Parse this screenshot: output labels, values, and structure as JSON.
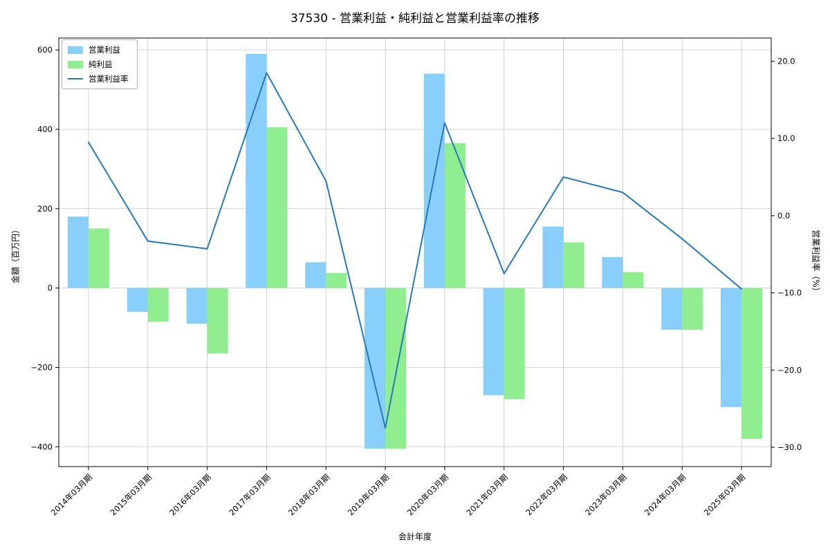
{
  "chart_data": {
    "type": "bar",
    "title": "37530 - 営業利益・純利益と営業利益率の推移",
    "xlabel": "会計年度",
    "ylabel_left": "金額（百万円）",
    "ylabel_right": "営業利益率（%）",
    "categories": [
      "2014年03月期",
      "2015年03月期",
      "2016年03月期",
      "2017年03月期",
      "2018年03月期",
      "2019年03月期",
      "2020年03月期",
      "2021年03月期",
      "2022年03月期",
      "2023年03月期",
      "2024年03月期",
      "2025年03月期"
    ],
    "series": [
      {
        "name": "営業利益",
        "type": "bar",
        "axis": "left",
        "color": "#87cefa",
        "values": [
          180,
          -60,
          -90,
          590,
          65,
          -405,
          540,
          -270,
          155,
          78,
          -105,
          -300
        ]
      },
      {
        "name": "純利益",
        "type": "bar",
        "axis": "left",
        "color": "#90ee90",
        "values": [
          150,
          -85,
          -165,
          405,
          38,
          -405,
          365,
          -280,
          115,
          40,
          -105,
          -380
        ]
      },
      {
        "name": "営業利益率",
        "type": "line",
        "axis": "right",
        "color": "#2878b5",
        "values": [
          9.5,
          -3.3,
          -4.3,
          18.5,
          4.5,
          -27.5,
          12.0,
          -7.5,
          5.0,
          3.0,
          -3.0,
          -9.5
        ]
      }
    ],
    "left_axis": {
      "min": -450,
      "max": 630,
      "ticks": [
        600,
        400,
        200,
        0,
        -200,
        -400
      ],
      "tick_labels": [
        "600",
        "400",
        "200",
        "0",
        "−200",
        "−400"
      ]
    },
    "right_axis": {
      "min": -32.5,
      "max": 23,
      "ticks": [
        20,
        10,
        0,
        -10,
        -20,
        -30
      ],
      "tick_labels": [
        "20.0",
        "10.0",
        "0.0",
        "−10.0",
        "−20.0",
        "−30.0"
      ]
    },
    "grid": true,
    "legend_position": "upper left",
    "colors": {
      "grid": "#cccccc",
      "spine": "#000000",
      "background": "#ffffff",
      "text": "#000000"
    }
  }
}
